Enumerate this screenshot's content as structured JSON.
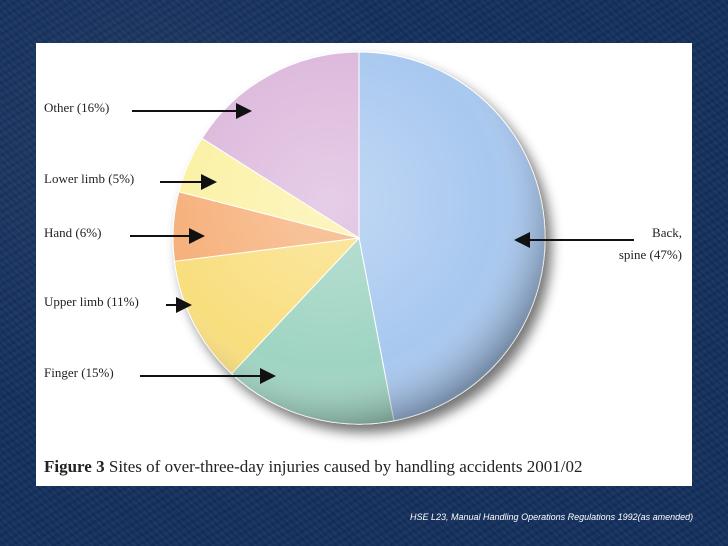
{
  "chart_data": {
    "type": "pie",
    "slices": [
      {
        "label": "Back, spine",
        "value": 47,
        "color": "#a8c8f0",
        "label_lines": [
          "Back,",
          "spine (47%)"
        ]
      },
      {
        "label": "Finger",
        "value": 15,
        "color": "#9fd4c2",
        "label_lines": [
          "Finger  (15%)"
        ]
      },
      {
        "label": "Upper limb",
        "value": 11,
        "color": "#f9de7e",
        "label_lines": [
          "Upper limb  (11%)"
        ]
      },
      {
        "label": "Hand",
        "value": 6,
        "color": "#f6b07a",
        "label_lines": [
          "Hand  (6%)"
        ]
      },
      {
        "label": "Lower limb",
        "value": 5,
        "color": "#fbf1a4",
        "label_lines": [
          "Lower limb  (5%)"
        ]
      },
      {
        "label": "Other",
        "value": 16,
        "color": "#dcb8dc",
        "label_lines": [
          "Other  (16%)"
        ]
      }
    ]
  },
  "caption": {
    "figure_no": "Figure 3",
    "text": " Sites of over-three-day injuries caused by handling accidents 2001/02"
  },
  "source": "HSE L23, Manual Handling Operations Regulations 1992(as amended)"
}
